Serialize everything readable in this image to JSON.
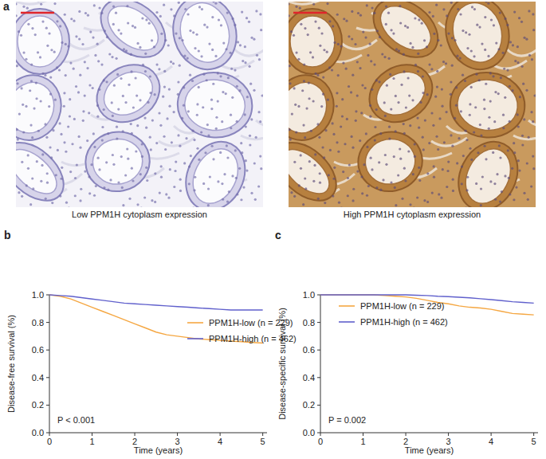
{
  "panel_a": {
    "label": "a",
    "captions": [
      "Low PPM1H cytoplasm expression",
      "High PPM1H cytoplasm expression"
    ]
  },
  "chart_data": [
    {
      "type": "line",
      "title": "b",
      "line_style": "solid",
      "x_label": "Time (years)",
      "y_label": "Disease-free survival (%)",
      "x": [
        0,
        0.25,
        0.5,
        0.75,
        1,
        1.25,
        1.5,
        1.75,
        2,
        2.25,
        2.5,
        2.75,
        3,
        3.25,
        3.5,
        3.75,
        4,
        4.25,
        4.5,
        4.75,
        5
      ],
      "series": [
        {
          "name": "PPM1H-low (n = 229)",
          "color": "#f5a742",
          "values": [
            1.0,
            0.99,
            0.97,
            0.94,
            0.91,
            0.88,
            0.85,
            0.82,
            0.79,
            0.76,
            0.73,
            0.71,
            0.7,
            0.69,
            0.68,
            0.675,
            0.67,
            0.665,
            0.66,
            0.655,
            0.65
          ]
        },
        {
          "name": "PPM1H-high (n = 462)",
          "color": "#6060cc",
          "values": [
            1.0,
            0.995,
            0.99,
            0.98,
            0.97,
            0.96,
            0.95,
            0.94,
            0.935,
            0.93,
            0.925,
            0.92,
            0.915,
            0.91,
            0.905,
            0.9,
            0.895,
            0.89,
            0.89,
            0.89,
            0.89
          ]
        }
      ],
      "xlim": [
        0,
        5.1
      ],
      "xticks": [
        0,
        1,
        2,
        3,
        4,
        5
      ],
      "ylim": [
        0,
        1.0
      ],
      "yticks": [
        {
          "value": 0,
          "label": "0.0"
        },
        {
          "value": 0.2,
          "label": "0.2"
        },
        {
          "value": 0.4,
          "label": "0.4"
        },
        {
          "value": 0.6,
          "label": "0.6"
        },
        {
          "value": 0.8,
          "label": "0.8"
        },
        {
          "value": 1.0,
          "label": "1.0"
        }
      ],
      "annotations": [
        "P < 0.001"
      ],
      "grid": false
    },
    {
      "type": "line",
      "title": "c",
      "line_style": "solid",
      "x_label": "Time (years)",
      "y_label": "Disease-specific survival (%)",
      "x": [
        0,
        0.25,
        0.5,
        0.75,
        1,
        1.25,
        1.5,
        1.75,
        2,
        2.25,
        2.5,
        2.75,
        3,
        3.25,
        3.5,
        3.75,
        4,
        4.25,
        4.5,
        4.75,
        5
      ],
      "series": [
        {
          "name": "PPM1H-low (n = 229)",
          "color": "#f5a742",
          "values": [
            1.0,
            1.0,
            1.0,
            1.0,
            1.0,
            1.0,
            0.995,
            0.99,
            0.985,
            0.975,
            0.96,
            0.945,
            0.935,
            0.92,
            0.91,
            0.905,
            0.895,
            0.88,
            0.865,
            0.86,
            0.855
          ]
        },
        {
          "name": "PPM1H-high (n = 462)",
          "color": "#6060cc",
          "values": [
            1.0,
            1.0,
            1.0,
            1.0,
            1.0,
            1.0,
            1.0,
            1.0,
            1.0,
            0.997,
            0.995,
            0.99,
            0.987,
            0.983,
            0.978,
            0.972,
            0.965,
            0.958,
            0.95,
            0.945,
            0.94
          ]
        }
      ],
      "xlim": [
        0,
        5.1
      ],
      "xticks": [
        0,
        1,
        2,
        3,
        4,
        5
      ],
      "ylim": [
        0,
        1.0
      ],
      "yticks": [
        {
          "value": 0,
          "label": "0.0"
        },
        {
          "value": 0.2,
          "label": "0.2"
        },
        {
          "value": 0.4,
          "label": "0.4"
        },
        {
          "value": 0.6,
          "label": "0.6"
        },
        {
          "value": 0.8,
          "label": "0.8"
        },
        {
          "value": 1.0,
          "label": "1.0"
        }
      ],
      "annotations": [
        "P = 0.002"
      ],
      "grid": false
    }
  ]
}
